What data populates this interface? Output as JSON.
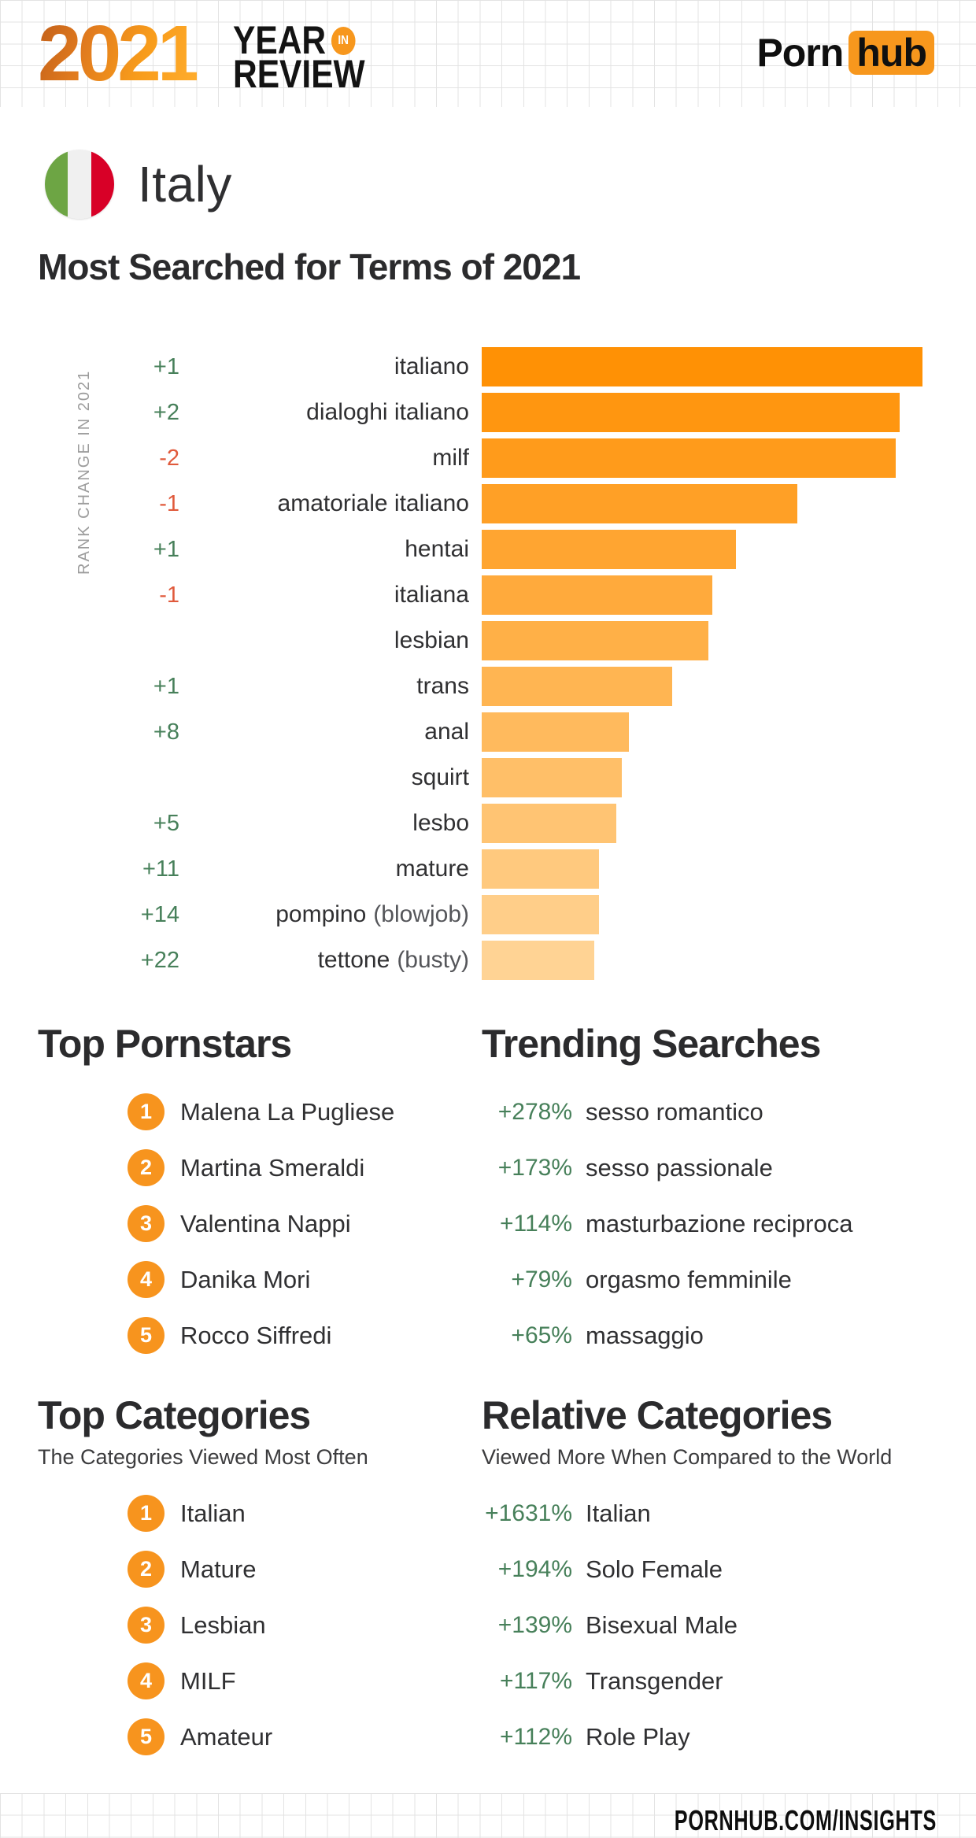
{
  "header": {
    "year": "2021",
    "year_word": "YEAR",
    "in_badge": "IN",
    "review_word": "REVIEW",
    "brand": {
      "porn": "Porn",
      "hub": "hub"
    }
  },
  "country": {
    "name": "Italy"
  },
  "main_title": "Most Searched for Terms of 2021",
  "chart_data": {
    "type": "bar",
    "orientation": "horizontal",
    "title": "Most Searched for Terms of 2021",
    "axis_label": "RANK CHANGE IN 2021",
    "value_unit": "relative search volume, % of top term (estimated from bar lengths)",
    "xlim": [
      0,
      100
    ],
    "categories": [
      "italiano",
      "dialoghi italiano",
      "milf",
      "amatoriale italiano",
      "hentai",
      "italiana",
      "lesbian",
      "trans",
      "anal",
      "squirt",
      "lesbo",
      "mature",
      "pompino",
      "tettone"
    ],
    "category_notes": [
      "",
      "",
      "",
      "",
      "",
      "",
      "",
      "",
      "",
      "",
      "",
      "",
      "(blowjob)",
      "(busty)"
    ],
    "values": [
      100,
      94.8,
      93.9,
      71.6,
      57.7,
      52.3,
      51.4,
      43.2,
      33.4,
      31.8,
      30.5,
      26.6,
      26.6,
      25.5
    ],
    "rank_changes": [
      "+1",
      "+2",
      "-2",
      "-1",
      "+1",
      "-1",
      "",
      "+1",
      "+8",
      "",
      "+5",
      "+11",
      "+14",
      "+22"
    ],
    "rank_change_colors": [
      "#47805A",
      "#47805A",
      "#E05A3C",
      "#E05A3C",
      "#47805A",
      "#E05A3C",
      "",
      "#47805A",
      "#47805A",
      "",
      "#47805A",
      "#47805A",
      "#47805A",
      "#47805A"
    ],
    "bar_colors": [
      "#FF9105",
      "#FF9610",
      "#FF9B1B",
      "#FFA026",
      "#FFA531",
      "#FFAA3C",
      "#FFB047",
      "#FFB552",
      "#FFBA5D",
      "#FFBF68",
      "#FFC473",
      "#FFC97E",
      "#FFCE89",
      "#FFD394"
    ]
  },
  "sections": {
    "top_pornstars": {
      "title": "Top Pornstars",
      "items": [
        {
          "rank": "1",
          "name": "Malena La Pugliese"
        },
        {
          "rank": "2",
          "name": "Martina Smeraldi"
        },
        {
          "rank": "3",
          "name": "Valentina Nappi"
        },
        {
          "rank": "4",
          "name": "Danika Mori"
        },
        {
          "rank": "5",
          "name": "Rocco Siffredi"
        }
      ]
    },
    "trending_searches": {
      "title": "Trending Searches",
      "items": [
        {
          "change": "+278%",
          "term": "sesso romantico"
        },
        {
          "change": "+173%",
          "term": "sesso passionale"
        },
        {
          "change": "+114%",
          "term": "masturbazione reciproca"
        },
        {
          "change": "+79%",
          "term": "orgasmo femminile"
        },
        {
          "change": "+65%",
          "term": "massaggio"
        }
      ]
    },
    "top_categories": {
      "title": "Top Categories",
      "subtitle": "The Categories Viewed Most Often",
      "items": [
        {
          "rank": "1",
          "name": "Italian"
        },
        {
          "rank": "2",
          "name": "Mature"
        },
        {
          "rank": "3",
          "name": "Lesbian"
        },
        {
          "rank": "4",
          "name": "MILF"
        },
        {
          "rank": "5",
          "name": "Amateur"
        }
      ]
    },
    "relative_categories": {
      "title": "Relative Categories",
      "subtitle": "Viewed More When Compared to the World",
      "items": [
        {
          "change": "+1631%",
          "term": "Italian"
        },
        {
          "change": "+194%",
          "term": "Solo Female"
        },
        {
          "change": "+139%",
          "term": "Bisexual Male"
        },
        {
          "change": "+117%",
          "term": "Transgender"
        },
        {
          "change": "+112%",
          "term": "Role Play"
        }
      ]
    }
  },
  "footer": {
    "url": "PORNHUB.COM/INSIGHTS"
  },
  "colors": {
    "accent_orange": "#F7971D",
    "positive_green": "#47805A",
    "negative_red": "#E05A3C",
    "text_dark": "#2B2B2D",
    "grid_line": "#E3E3E3",
    "flag_green": "#6DA544",
    "flag_white": "#F0F0F0",
    "flag_red": "#D80027"
  }
}
